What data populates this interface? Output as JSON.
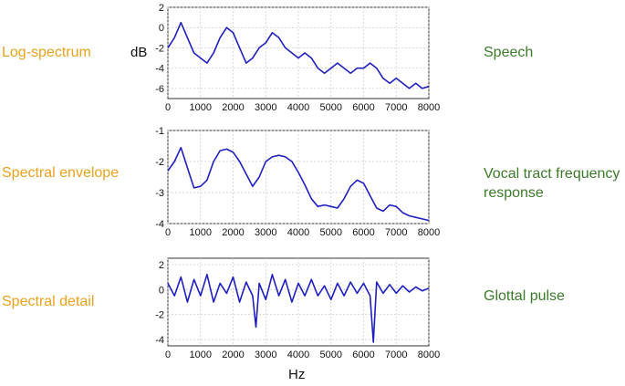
{
  "labels": {
    "left": [
      "Log-spectrum",
      "Spectral envelope",
      "Spectral detail"
    ],
    "right": [
      "Speech",
      "Vocal tract frequency response",
      "Glottal pulse"
    ],
    "db_unit": "dB",
    "hz_unit": "Hz"
  },
  "colors": {
    "trace": "#1f1fbf",
    "grid": "#c8c8c8",
    "left_label": "#e8a21e",
    "right_label": "#3c7a2a"
  },
  "chart_data": [
    {
      "type": "line",
      "name_left": "Log-spectrum",
      "name_right": "Speech",
      "ylabel": "dB",
      "xlim": [
        0,
        8000
      ],
      "ylim": [
        -7,
        2
      ],
      "xticks": [
        0,
        1000,
        2000,
        3000,
        4000,
        5000,
        6000,
        7000,
        8000
      ],
      "yticks": [
        2,
        0,
        -2,
        -4,
        -6
      ],
      "grid": true,
      "x": [
        0,
        200,
        400,
        600,
        800,
        1000,
        1200,
        1400,
        1600,
        1800,
        2000,
        2200,
        2400,
        2600,
        2800,
        3000,
        3200,
        3400,
        3600,
        3800,
        4000,
        4200,
        4400,
        4600,
        4800,
        5000,
        5200,
        5400,
        5600,
        5800,
        6000,
        6200,
        6400,
        6600,
        6800,
        7000,
        7200,
        7400,
        7600,
        7800,
        8000
      ],
      "y": [
        -2,
        -1,
        0.5,
        -1,
        -2.5,
        -3,
        -3.5,
        -2.5,
        -1,
        0,
        -0.5,
        -2,
        -3.5,
        -3,
        -2,
        -1.5,
        -0.5,
        -1,
        -2,
        -2.5,
        -3,
        -2.5,
        -3,
        -4,
        -4.5,
        -4,
        -3.5,
        -4,
        -4.5,
        -4,
        -4,
        -3.5,
        -4,
        -5,
        -5.5,
        -5,
        -5.5,
        -6,
        -5.5,
        -6,
        -5.8
      ]
    },
    {
      "type": "line",
      "name_left": "Spectral envelope",
      "name_right": "Vocal tract frequency response",
      "xlim": [
        0,
        8000
      ],
      "ylim": [
        -4,
        -1
      ],
      "xticks": [
        0,
        1000,
        2000,
        3000,
        4000,
        5000,
        6000,
        7000,
        8000
      ],
      "yticks": [
        -1,
        -2,
        -3,
        -4
      ],
      "grid": true,
      "x": [
        0,
        200,
        400,
        600,
        800,
        1000,
        1200,
        1400,
        1600,
        1800,
        2000,
        2200,
        2400,
        2600,
        2800,
        3000,
        3200,
        3400,
        3600,
        3800,
        4000,
        4200,
        4400,
        4600,
        4800,
        5000,
        5200,
        5400,
        5600,
        5800,
        6000,
        6200,
        6400,
        6600,
        6800,
        7000,
        7200,
        7400,
        7600,
        7800,
        8000
      ],
      "y": [
        -2.3,
        -2.0,
        -1.55,
        -2.2,
        -2.85,
        -2.8,
        -2.6,
        -2.0,
        -1.65,
        -1.6,
        -1.7,
        -2.0,
        -2.4,
        -2.8,
        -2.5,
        -2.0,
        -1.85,
        -1.8,
        -1.85,
        -2.0,
        -2.35,
        -2.75,
        -3.2,
        -3.45,
        -3.4,
        -3.45,
        -3.5,
        -3.2,
        -2.8,
        -2.6,
        -2.7,
        -3.1,
        -3.5,
        -3.6,
        -3.4,
        -3.45,
        -3.65,
        -3.75,
        -3.8,
        -3.85,
        -3.9
      ]
    },
    {
      "type": "line",
      "name_left": "Spectral detail",
      "name_right": "Glottal pulse",
      "xlabel": "Hz",
      "xlim": [
        0,
        8000
      ],
      "ylim": [
        -4.5,
        2.5
      ],
      "xticks": [
        0,
        1000,
        2000,
        3000,
        4000,
        5000,
        6000,
        7000,
        8000
      ],
      "yticks": [
        2,
        0,
        -2,
        -4
      ],
      "grid": true,
      "x": [
        0,
        200,
        400,
        600,
        800,
        1000,
        1200,
        1400,
        1600,
        1800,
        2000,
        2200,
        2400,
        2600,
        2700,
        2800,
        3000,
        3200,
        3400,
        3600,
        3800,
        4000,
        4200,
        4400,
        4600,
        4800,
        5000,
        5200,
        5400,
        5600,
        5800,
        6000,
        6200,
        6300,
        6400,
        6600,
        6800,
        7000,
        7200,
        7400,
        7600,
        7800,
        8000
      ],
      "y": [
        0.5,
        -0.5,
        1,
        -1,
        0.8,
        -0.5,
        1.2,
        -1,
        0.5,
        -0.3,
        1,
        -1,
        0.6,
        -0.5,
        -3,
        0.5,
        -0.8,
        1.2,
        -0.5,
        0.8,
        -1,
        0.5,
        -0.5,
        0.8,
        -0.5,
        0.3,
        -0.8,
        0.5,
        -0.5,
        0.6,
        -0.3,
        0.5,
        -0.5,
        -4.2,
        0.6,
        -0.3,
        0.4,
        -0.3,
        0.3,
        -0.2,
        0.2,
        -0.1,
        0.1
      ]
    }
  ]
}
